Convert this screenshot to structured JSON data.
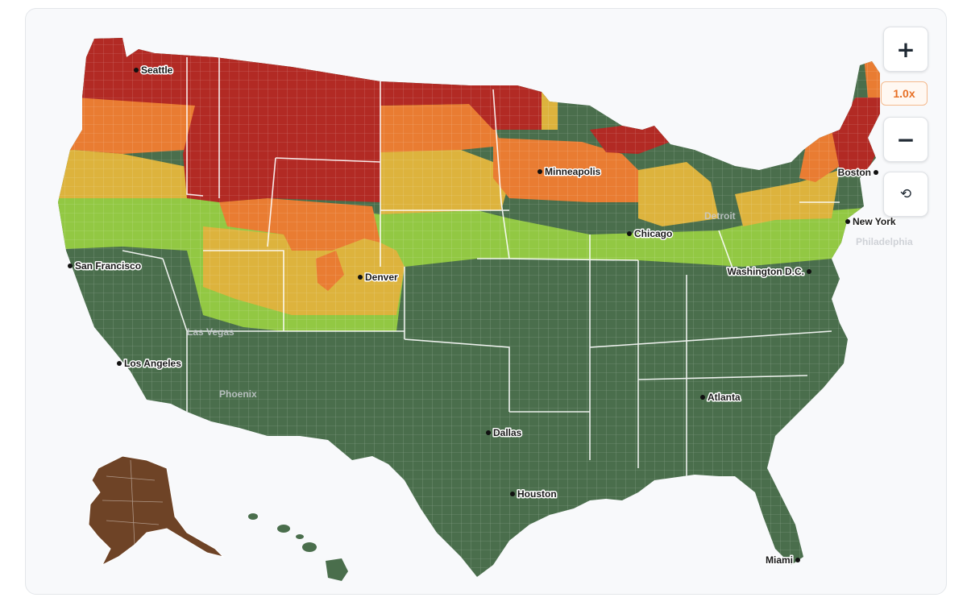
{
  "controls": {
    "zoom_in": "+",
    "zoom_level": "1.0x",
    "zoom_out": "−",
    "reset": "⟲"
  },
  "colors": {
    "peak_red": "#b22a24",
    "near_peak_orange": "#e97c32",
    "moderate_yellow": "#ddb33d",
    "minimal_lightgreen": "#92c843",
    "none_darkgreen": "#4a6e4c",
    "past_peak_brown": "#6e4326"
  },
  "cities": [
    {
      "name": "Seattle"
    },
    {
      "name": "San Francisco"
    },
    {
      "name": "Los Angeles"
    },
    {
      "name": "Denver"
    },
    {
      "name": "Minneapolis"
    },
    {
      "name": "Chicago"
    },
    {
      "name": "Dallas"
    },
    {
      "name": "Houston"
    },
    {
      "name": "Atlanta"
    },
    {
      "name": "Miami"
    },
    {
      "name": "Washington D.C."
    },
    {
      "name": "New York"
    },
    {
      "name": "Boston"
    }
  ],
  "faded_labels": [
    "Detroit",
    "Philadelphia",
    "Las Vegas",
    "Phoenix"
  ]
}
